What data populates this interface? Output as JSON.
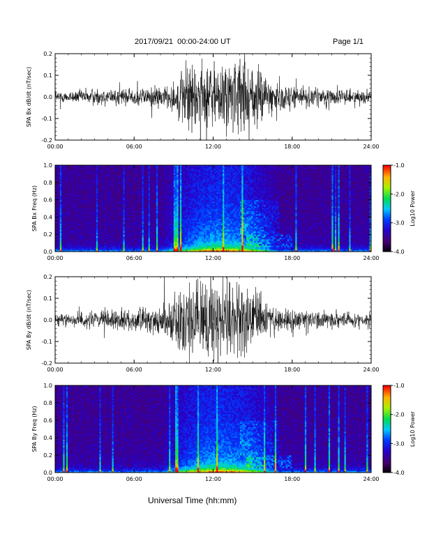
{
  "header": {
    "title": "2017/09/21  00:00-24:00 UT",
    "page": "Page 1/1"
  },
  "footer": {
    "xlabel": "Universal Time (hh:mm)"
  },
  "chart_data": [
    {
      "type": "line",
      "ylabel": "SPA Bx dB/dt (nT/sec)",
      "xlim": [
        "00:00",
        "24:00"
      ],
      "ylim": [
        -0.2,
        0.2
      ],
      "yticks": [
        "-0.2",
        "-0.1",
        "0.0",
        "0.1",
        "0.2"
      ],
      "xticks": [
        "00:00",
        "06:00",
        "12:00",
        "18:00",
        "24:00"
      ],
      "x": [
        "00:00",
        "01:00",
        "02:00",
        "03:00",
        "04:00",
        "05:00",
        "06:00",
        "07:00",
        "08:00",
        "09:00",
        "10:00",
        "11:00",
        "12:00",
        "13:00",
        "14:00",
        "15:00",
        "16:00",
        "17:00",
        "18:00",
        "19:00",
        "20:00",
        "21:00",
        "22:00",
        "23:00",
        "24:00"
      ],
      "envelope": [
        0.03,
        0.03,
        0.04,
        0.05,
        0.04,
        0.05,
        0.05,
        0.06,
        0.06,
        0.08,
        0.2,
        0.2,
        0.2,
        0.2,
        0.2,
        0.2,
        0.12,
        0.08,
        0.07,
        0.06,
        0.05,
        0.05,
        0.04,
        0.04,
        0.04
      ]
    },
    {
      "type": "heatmap",
      "ylabel": "SPA Bx Freq (Hz)",
      "xlim": [
        "00:00",
        "24:00"
      ],
      "ylim": [
        0.0,
        1.0
      ],
      "yticks": [
        "0.0",
        "0.2",
        "0.4",
        "0.6",
        "0.8",
        "1.0"
      ],
      "xticks": [
        "00:00",
        "06:00",
        "12:00",
        "18:00",
        "24:00"
      ],
      "colorbar": {
        "label": "Log10 Power",
        "range": [
          -4.0,
          -1.0
        ],
        "ticks": [
          "-1.0",
          "-2.0",
          "-3.0",
          "-4.0"
        ]
      }
    },
    {
      "type": "line",
      "ylabel": "SPA By dB/dt (nT/sec)",
      "xlim": [
        "00:00",
        "24:00"
      ],
      "ylim": [
        -0.2,
        0.2
      ],
      "yticks": [
        "-0.2",
        "-0.1",
        "0.0",
        "0.1",
        "0.2"
      ],
      "xticks": [
        "00:00",
        "06:00",
        "12:00",
        "18:00",
        "24:00"
      ],
      "x": [
        "00:00",
        "01:00",
        "02:00",
        "03:00",
        "04:00",
        "05:00",
        "06:00",
        "07:00",
        "08:00",
        "09:00",
        "10:00",
        "11:00",
        "12:00",
        "13:00",
        "14:00",
        "15:00",
        "16:00",
        "17:00",
        "18:00",
        "19:00",
        "20:00",
        "21:00",
        "22:00",
        "23:00",
        "24:00"
      ],
      "envelope": [
        0.03,
        0.03,
        0.04,
        0.05,
        0.05,
        0.05,
        0.06,
        0.07,
        0.08,
        0.15,
        0.2,
        0.2,
        0.2,
        0.2,
        0.2,
        0.2,
        0.1,
        0.07,
        0.06,
        0.05,
        0.05,
        0.05,
        0.04,
        0.04,
        0.04
      ]
    },
    {
      "type": "heatmap",
      "ylabel": "SPA By Freq (Hz)",
      "xlim": [
        "00:00",
        "24:00"
      ],
      "ylim": [
        0.0,
        1.0
      ],
      "yticks": [
        "0.0",
        "0.2",
        "0.4",
        "0.6",
        "0.8",
        "1.0"
      ],
      "xticks": [
        "00:00",
        "06:00",
        "12:00",
        "18:00",
        "24:00"
      ],
      "colorbar": {
        "label": "Log10 Power",
        "range": [
          -4.0,
          -1.0
        ],
        "ticks": [
          "-1.0",
          "-2.0",
          "-3.0",
          "-4.0"
        ]
      }
    }
  ]
}
